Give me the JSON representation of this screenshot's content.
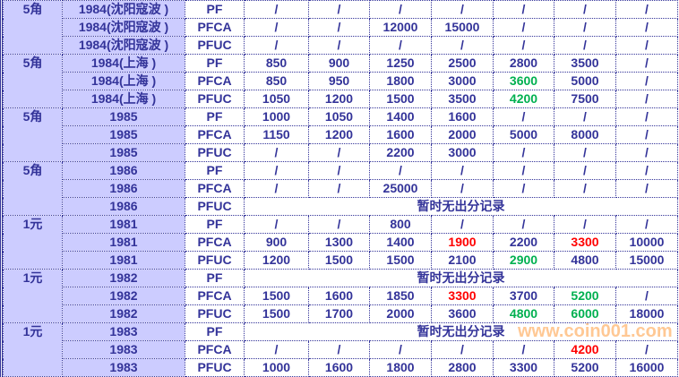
{
  "watermark": "www.coin001.com",
  "colors": {
    "text": "#333399",
    "label_bg": "#ccccff",
    "red": "#ff0000",
    "green": "#00b050"
  },
  "groups": [
    {
      "denomination": "5角",
      "rows": [
        {
          "year": "1984(沈阳寇波 )",
          "type": "PF",
          "cells": [
            "/",
            "/",
            "/",
            "/",
            "/",
            "/",
            "/"
          ]
        },
        {
          "year": "1984(沈阳寇波 )",
          "type": "PFCA",
          "cells": [
            "/",
            "/",
            "12000",
            "15000",
            "/",
            "/",
            "/"
          ]
        },
        {
          "year": "1984(沈阳寇波 )",
          "type": "PFUC",
          "cells": [
            "/",
            "/",
            "/",
            "/",
            "/",
            "/",
            "/"
          ]
        }
      ]
    },
    {
      "denomination": "5角",
      "rows": [
        {
          "year": "1984(上海 )",
          "type": "PF",
          "cells": [
            "850",
            "900",
            "1250",
            "2500",
            "2800",
            "3500",
            "/"
          ]
        },
        {
          "year": "1984(上海 )",
          "type": "PFCA",
          "cells": [
            "850",
            "950",
            "1800",
            "3000",
            {
              "text": "3600",
              "color": "green"
            },
            "5000",
            "/"
          ]
        },
        {
          "year": "1984(上海 )",
          "type": "PFUC",
          "cells": [
            "1050",
            "1200",
            "1500",
            "3500",
            {
              "text": "4200",
              "color": "green"
            },
            "7500",
            "/"
          ]
        }
      ]
    },
    {
      "denomination": "5角",
      "rows": [
        {
          "year": "1985",
          "type": "PF",
          "cells": [
            "1000",
            "1050",
            "1400",
            "1600",
            "/",
            "/",
            "/"
          ]
        },
        {
          "year": "1985",
          "type": "PFCA",
          "cells": [
            "1150",
            "1200",
            "1600",
            "2000",
            "5000",
            "8000",
            "/"
          ]
        },
        {
          "year": "1985",
          "type": "PFUC",
          "cells": [
            "/",
            "/",
            "2200",
            "3000",
            "/",
            "/",
            "/"
          ]
        }
      ]
    },
    {
      "denomination": "5角",
      "rows": [
        {
          "year": "1986",
          "type": "PF",
          "cells": [
            "/",
            "/",
            "/",
            "/",
            "/",
            "/",
            "/"
          ]
        },
        {
          "year": "1986",
          "type": "PFCA",
          "cells": [
            "/",
            "/",
            "25000",
            "/",
            "/",
            "/",
            "/"
          ]
        },
        {
          "year": "1986",
          "type": "PFUC",
          "note": "暂时无出分记录"
        }
      ]
    },
    {
      "denomination": "1元",
      "rows": [
        {
          "year": "1981",
          "type": "PF",
          "cells": [
            "/",
            "/",
            "800",
            "/",
            "/",
            "/",
            "/"
          ]
        },
        {
          "year": "1981",
          "type": "PFCA",
          "cells": [
            "900",
            "1300",
            "1400",
            {
              "text": "1900",
              "color": "red"
            },
            "2200",
            {
              "text": "3300",
              "color": "red"
            },
            "10000"
          ]
        },
        {
          "year": "1981",
          "type": "PFUC",
          "cells": [
            "1200",
            "1500",
            "1500",
            "2100",
            {
              "text": "2900",
              "color": "green"
            },
            "4800",
            "15000"
          ]
        }
      ]
    },
    {
      "denomination": "1元",
      "rows": [
        {
          "year": "1982",
          "type": "PF",
          "note": "暂时无出分记录"
        },
        {
          "year": "1982",
          "type": "PFCA",
          "cells": [
            "1500",
            "1600",
            "1850",
            {
              "text": "3300",
              "color": "red"
            },
            "3700",
            {
              "text": "5200",
              "color": "green"
            },
            "/"
          ]
        },
        {
          "year": "1982",
          "type": "PFUC",
          "cells": [
            "1500",
            "1700",
            "2000",
            "3600",
            {
              "text": "4800",
              "color": "green"
            },
            {
              "text": "6000",
              "color": "green"
            },
            "18000"
          ]
        }
      ]
    },
    {
      "denomination": "1元",
      "rows": [
        {
          "year": "1983",
          "type": "PF",
          "note": "暂时无出分记录"
        },
        {
          "year": "1983",
          "type": "PFCA",
          "cells": [
            "/",
            "/",
            "/",
            "/",
            "/",
            {
              "text": "4200",
              "color": "red"
            },
            "/"
          ]
        },
        {
          "year": "1983",
          "type": "PFUC",
          "cells": [
            "1000",
            "1600",
            "1800",
            "2800",
            "3300",
            "5200",
            "16000"
          ]
        }
      ]
    }
  ]
}
